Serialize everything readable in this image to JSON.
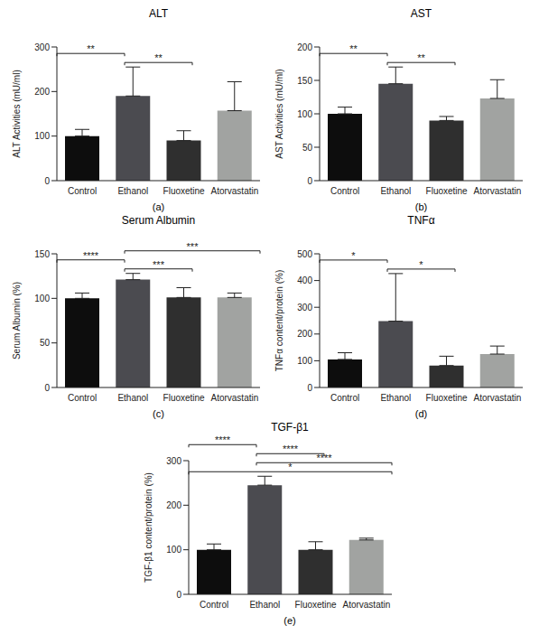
{
  "chart_data": [
    {
      "type": "bar",
      "title": "ALT",
      "caption": "(a)",
      "y_label": "ALT Activities (mU/ml)",
      "categories": [
        "Control",
        "Ethanol",
        "Fluoxetine",
        "Atorvastatin"
      ],
      "values": [
        100,
        190,
        90,
        157
      ],
      "errors": [
        15,
        65,
        22,
        65
      ],
      "colors": [
        "#0d0d0d",
        "#4b4b50",
        "#2f2f2f",
        "#a1a3a1"
      ],
      "ylim": [
        0,
        300
      ],
      "yticks": [
        0,
        100,
        200,
        300
      ],
      "annotations": [
        {
          "from": "Ethanol",
          "to": "Fluoxetine",
          "label": "**"
        },
        {
          "from": "Control",
          "to": "Ethanol",
          "label": "**"
        }
      ]
    },
    {
      "type": "bar",
      "title": "AST",
      "caption": "(b)",
      "y_label": "AST Activities (mU/ml)",
      "categories": [
        "Control",
        "Ethanol",
        "Fluoxetine",
        "Atorvastatin"
      ],
      "values": [
        100,
        145,
        90,
        123
      ],
      "errors": [
        10,
        25,
        6,
        28
      ],
      "colors": [
        "#0d0d0d",
        "#4b4b50",
        "#2f2f2f",
        "#a1a3a1"
      ],
      "ylim": [
        0,
        200
      ],
      "yticks": [
        0,
        50,
        100,
        150,
        200
      ],
      "annotations": [
        {
          "from": "Ethanol",
          "to": "Fluoxetine",
          "label": "**"
        },
        {
          "from": "Control",
          "to": "Ethanol",
          "label": "**"
        }
      ]
    },
    {
      "type": "bar",
      "title": "Serum Albumin",
      "caption": "(c)",
      "y_label": "Serum Albumin (%)",
      "categories": [
        "Control",
        "Ethanol",
        "Fluoxetine",
        "Atorvastatin"
      ],
      "values": [
        100,
        121,
        101,
        101
      ],
      "errors": [
        6,
        7,
        11,
        5
      ],
      "colors": [
        "#0d0d0d",
        "#4b4b50",
        "#2f2f2f",
        "#a1a3a1"
      ],
      "ylim": [
        0,
        150
      ],
      "yticks": [
        0,
        50,
        100,
        150
      ],
      "annotations": [
        {
          "from": "Ethanol",
          "to": "Fluoxetine",
          "label": "***"
        },
        {
          "from": "Control",
          "to": "Ethanol",
          "label": "****"
        },
        {
          "from": "Ethanol",
          "to": "Atorvastatin",
          "label": "***"
        }
      ]
    },
    {
      "type": "bar",
      "title": "TNFα",
      "caption": "(d)",
      "y_label": "TNFα content/protein (%)",
      "categories": [
        "Control",
        "Ethanol",
        "Fluoxetine",
        "Atorvastatin"
      ],
      "values": [
        105,
        248,
        82,
        125
      ],
      "errors": [
        25,
        178,
        35,
        30
      ],
      "colors": [
        "#0d0d0d",
        "#4b4b50",
        "#2f2f2f",
        "#a1a3a1"
      ],
      "ylim": [
        0,
        500
      ],
      "yticks": [
        0,
        100,
        200,
        300,
        400,
        500
      ],
      "annotations": [
        {
          "from": "Ethanol",
          "to": "Fluoxetine",
          "label": "*"
        },
        {
          "from": "Control",
          "to": "Ethanol",
          "label": "*"
        }
      ]
    },
    {
      "type": "bar",
      "title": "TGF-β1",
      "caption": "(e)",
      "y_label": "TGF-β1 content/protein (%)",
      "categories": [
        "Control",
        "Ethanol",
        "Fluoxetine",
        "Atorvastatin"
      ],
      "values": [
        100,
        245,
        100,
        122
      ],
      "errors": [
        13,
        20,
        18,
        4
      ],
      "colors": [
        "#0d0d0d",
        "#4b4b50",
        "#2f2f2f",
        "#a1a3a1"
      ],
      "ylim": [
        0,
        300
      ],
      "yticks": [
        0,
        100,
        200,
        300
      ],
      "annotations": [
        {
          "from": "Control",
          "to": "Atorvastatin",
          "label": "*"
        },
        {
          "from": "Ethanol",
          "to": "Atorvastatin",
          "label": "****"
        },
        {
          "from": "Ethanol",
          "to": "Fluoxetine",
          "label": "****"
        },
        {
          "from": "Control",
          "to": "Ethanol",
          "label": "****"
        }
      ]
    }
  ]
}
